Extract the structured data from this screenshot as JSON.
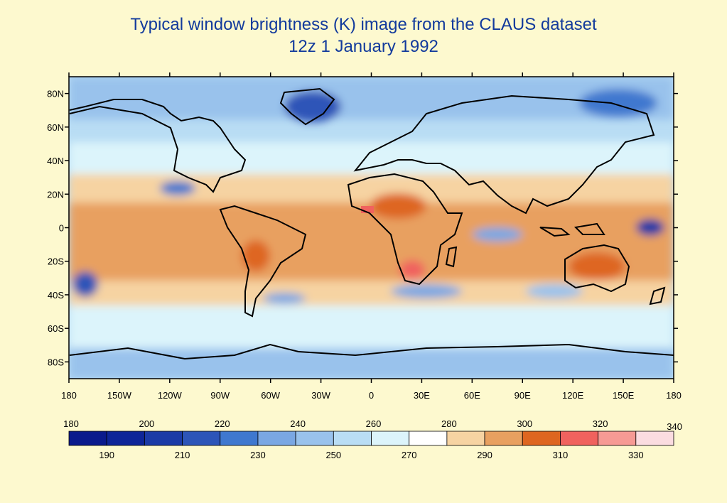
{
  "title": {
    "line1": "Typical window brightness (K) image from the CLAUS dataset",
    "line2": "12z 1 January 1992"
  },
  "map": {
    "projection": "cylindrical-equidistant",
    "lat_labels": [
      "80N",
      "60N",
      "40N",
      "20N",
      "0",
      "20S",
      "40S",
      "60S",
      "80S"
    ],
    "lat_values": [
      80,
      60,
      40,
      20,
      0,
      -20,
      -40,
      -60,
      -80
    ],
    "lon_labels": [
      "180",
      "150W",
      "120W",
      "90W",
      "60W",
      "30W",
      "0",
      "30E",
      "60E",
      "90E",
      "120E",
      "150E",
      "180"
    ],
    "lon_values": [
      -180,
      -150,
      -120,
      -90,
      -60,
      -30,
      0,
      30,
      60,
      90,
      120,
      150,
      180
    ]
  },
  "colorbar": {
    "levels": [
      180,
      190,
      200,
      210,
      220,
      230,
      240,
      250,
      260,
      270,
      280,
      290,
      300,
      310,
      320,
      330,
      340
    ],
    "labels_top": [
      "180",
      "200",
      "220",
      "240",
      "260",
      "280",
      "300",
      "320"
    ],
    "labels_bottom": [
      "190",
      "210",
      "230",
      "250",
      "270",
      "290",
      "310",
      "330"
    ],
    "label_end": "340",
    "colors": [
      "#0a1a8c",
      "#0e2598",
      "#1b3aa6",
      "#2d55b8",
      "#3f78cf",
      "#7aa7e3",
      "#99c2ec",
      "#b9ddf4",
      "#dcf4fb",
      "#ffffff",
      "#f6d3a2",
      "#e8a060",
      "#de6620",
      "#f0625e",
      "#f69a94",
      "#fbdce0"
    ]
  }
}
